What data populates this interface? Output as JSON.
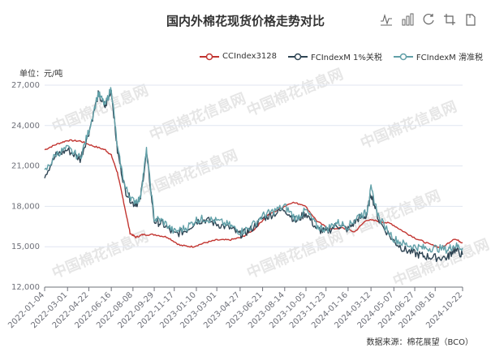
{
  "title": "国内外棉花现货价格走势对比",
  "unit_label": "单位：元/吨",
  "source_label": "数据来源：棉花展望（BCO）",
  "watermark": "中国棉花信息网",
  "toolbox": [
    "line-chart-icon",
    "bar-chart-icon",
    "restore-icon",
    "crop-icon",
    "download-icon"
  ],
  "chart_data": {
    "type": "line",
    "ylabel": "元/吨",
    "ylim": [
      12000,
      27000
    ],
    "yticks": [
      12000,
      15000,
      18000,
      21000,
      24000,
      27000
    ],
    "ytick_labels": [
      "12,000",
      "15,000",
      "18,000",
      "21,000",
      "24,000",
      "27,000"
    ],
    "xlim": [
      "2022-01-04",
      "2024-10-22"
    ],
    "xtick_labels": [
      "2022-01-04",
      "2022-03-01",
      "2022-04-22",
      "2022-06-16",
      "2022-08-08",
      "2022-09-29",
      "2022-11-17",
      "2023-01-10",
      "2023-03-01",
      "2023-04-27",
      "2023-06-21",
      "2023-08-14",
      "2023-10-05",
      "2023-11-23",
      "2024-01-16",
      "2024-03-12",
      "2024-05-07",
      "2024-06-27",
      "2024-08-16",
      "2024-10-22"
    ],
    "grid": true,
    "legend_position": "top-right",
    "series": [
      {
        "name": "CCIndex3128",
        "color": "#c23531",
        "x": [
          "2022-01-04",
          "2022-02-01",
          "2022-03-01",
          "2022-04-01",
          "2022-05-01",
          "2022-06-01",
          "2022-06-16",
          "2022-07-01",
          "2022-07-15",
          "2022-08-01",
          "2022-08-15",
          "2022-09-01",
          "2022-10-01",
          "2022-11-01",
          "2022-12-01",
          "2023-01-01",
          "2023-02-01",
          "2023-03-01",
          "2023-04-01",
          "2023-05-01",
          "2023-06-01",
          "2023-07-01",
          "2023-08-01",
          "2023-09-01",
          "2023-10-01",
          "2023-11-01",
          "2023-12-01",
          "2024-01-01",
          "2024-02-01",
          "2024-03-01",
          "2024-04-01",
          "2024-05-01",
          "2024-06-01",
          "2024-07-01",
          "2024-08-01",
          "2024-09-01",
          "2024-10-01",
          "2024-10-22"
        ],
        "y": [
          22200,
          22600,
          22900,
          22850,
          22500,
          22200,
          21800,
          20500,
          18500,
          16000,
          15700,
          15900,
          15900,
          15700,
          15100,
          15000,
          15300,
          15500,
          15500,
          15700,
          16300,
          17300,
          17800,
          18300,
          18100,
          16900,
          16300,
          16400,
          16100,
          17000,
          16900,
          16700,
          16100,
          15600,
          15200,
          14900,
          15600,
          15300
        ]
      },
      {
        "name": "FCIndexM 1%关税",
        "color": "#2f4554",
        "x": [
          "2022-01-04",
          "2022-02-01",
          "2022-03-01",
          "2022-04-01",
          "2022-04-22",
          "2022-05-15",
          "2022-06-01",
          "2022-06-16",
          "2022-07-01",
          "2022-07-20",
          "2022-08-08",
          "2022-08-25",
          "2022-09-10",
          "2022-09-29",
          "2022-10-20",
          "2022-11-17",
          "2022-12-15",
          "2023-01-10",
          "2023-02-01",
          "2023-03-01",
          "2023-04-01",
          "2023-04-27",
          "2023-05-20",
          "2023-06-21",
          "2023-07-15",
          "2023-08-14",
          "2023-09-10",
          "2023-10-05",
          "2023-11-01",
          "2023-11-23",
          "2023-12-20",
          "2024-01-16",
          "2024-02-10",
          "2024-03-01",
          "2024-03-12",
          "2024-04-01",
          "2024-05-07",
          "2024-06-01",
          "2024-06-27",
          "2024-07-20",
          "2024-08-16",
          "2024-09-15",
          "2024-10-01",
          "2024-10-22"
        ],
        "y": [
          20300,
          21800,
          22200,
          21500,
          23500,
          26300,
          25400,
          26700,
          22100,
          19200,
          18200,
          18300,
          22000,
          16900,
          16700,
          15900,
          16200,
          16900,
          17000,
          16700,
          16400,
          15900,
          16200,
          17100,
          17400,
          17800,
          16900,
          17500,
          16300,
          16100,
          16600,
          16300,
          17100,
          17300,
          19000,
          16900,
          15400,
          14800,
          14500,
          14300,
          14200,
          14200,
          14800,
          14400
        ]
      },
      {
        "name": "FCIndexM 滑准税",
        "color": "#61a0a8",
        "x": [
          "2022-01-04",
          "2022-02-01",
          "2022-03-01",
          "2022-04-01",
          "2022-04-22",
          "2022-05-15",
          "2022-06-01",
          "2022-06-16",
          "2022-07-01",
          "2022-07-20",
          "2022-08-08",
          "2022-08-25",
          "2022-09-10",
          "2022-09-29",
          "2022-10-20",
          "2022-11-17",
          "2022-12-15",
          "2023-01-10",
          "2023-02-01",
          "2023-03-01",
          "2023-04-01",
          "2023-04-27",
          "2023-05-20",
          "2023-06-21",
          "2023-07-15",
          "2023-08-14",
          "2023-09-10",
          "2023-10-05",
          "2023-11-01",
          "2023-11-23",
          "2023-12-20",
          "2024-01-16",
          "2024-02-10",
          "2024-03-01",
          "2024-03-12",
          "2024-04-01",
          "2024-05-07",
          "2024-06-01",
          "2024-06-27",
          "2024-07-20",
          "2024-08-16",
          "2024-09-15",
          "2024-10-01",
          "2024-10-22"
        ],
        "y": [
          20500,
          21900,
          22300,
          21600,
          23600,
          26400,
          25500,
          26800,
          22300,
          19400,
          18400,
          18500,
          22100,
          17100,
          16900,
          16100,
          16400,
          17000,
          17100,
          16900,
          16600,
          16100,
          16400,
          17300,
          17600,
          18000,
          17100,
          17700,
          16500,
          16300,
          16800,
          16500,
          17300,
          17500,
          19300,
          17100,
          15600,
          15200,
          15000,
          14900,
          14900,
          14800,
          15100,
          14900
        ]
      }
    ]
  }
}
